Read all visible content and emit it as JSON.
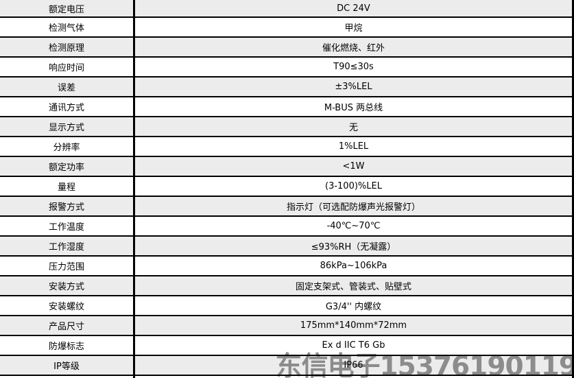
{
  "table": {
    "rows": [
      {
        "label": "额定电压",
        "value": "DC 24V"
      },
      {
        "label": "检测气体",
        "value": "甲烷"
      },
      {
        "label": "检测原理",
        "value": "催化燃烧、红外"
      },
      {
        "label": "响应时间",
        "value": "T90≤30s"
      },
      {
        "label": "误差",
        "value": "±3%LEL"
      },
      {
        "label": "通讯方式",
        "value": "M-BUS 两总线"
      },
      {
        "label": "显示方式",
        "value": "无"
      },
      {
        "label": "分辨率",
        "value": "1%LEL"
      },
      {
        "label": "额定功率",
        "value": "<1W"
      },
      {
        "label": "量程",
        "value": "(3-100)%LEL"
      },
      {
        "label": "报警方式",
        "value": "指示灯（可选配防爆声光报警灯）"
      },
      {
        "label": "工作温度",
        "value": "-40℃~70℃"
      },
      {
        "label": "工作湿度",
        "value": "≤93%RH（无凝露）"
      },
      {
        "label": "压力范围",
        "value": "86kPa~106kPa"
      },
      {
        "label": "安装方式",
        "value": "固定支架式、管装式、贴壁式"
      },
      {
        "label": "安装螺纹",
        "value": "G3/4'' 内螺纹"
      },
      {
        "label": "产品尺寸",
        "value": "175mm*140mm*72mm"
      },
      {
        "label": "防爆标志",
        "value": "Ex d IIC T6 Gb"
      },
      {
        "label": "IP等级",
        "value": "IP66"
      }
    ]
  },
  "watermark": {
    "text": "东信电子15376190119"
  },
  "colors": {
    "row_alt_background": "#ececec",
    "row_background": "#ffffff",
    "border": "#000000",
    "text": "#000000",
    "watermark": "#8c8c8c"
  }
}
